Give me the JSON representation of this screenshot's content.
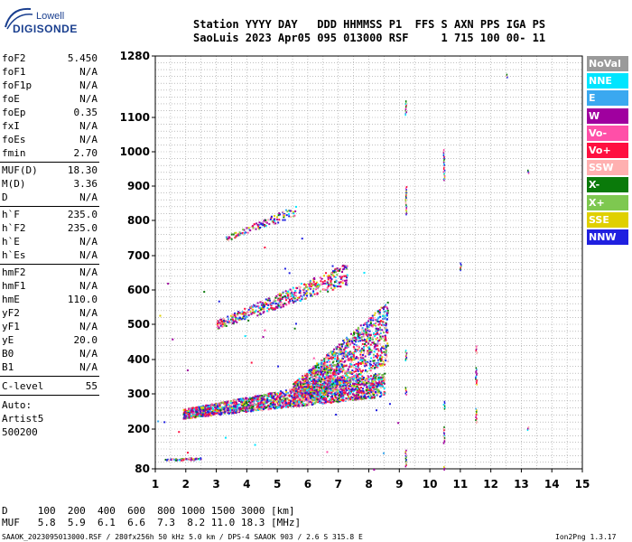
{
  "logo": {
    "line1": "Lowell",
    "line2": "DIGISONDE"
  },
  "header": {
    "row1": "Station YYYY DAY   DDD HHMMSS P1  FFS S AXN PPS IGA PS",
    "row2": "SaoLuis 2023 Apr05 095 013000 RSF     1 715 100 00- 11"
  },
  "params": {
    "group1": [
      {
        "label": "foF2",
        "value": "5.450"
      },
      {
        "label": "foF1",
        "value": "N/A"
      },
      {
        "label": "foF1p",
        "value": "N/A"
      },
      {
        "label": "foE",
        "value": "N/A"
      },
      {
        "label": "foEp",
        "value": "0.35"
      },
      {
        "label": "fxI",
        "value": "N/A"
      },
      {
        "label": "foEs",
        "value": "N/A"
      },
      {
        "label": "fmin",
        "value": "2.70"
      }
    ],
    "group2": [
      {
        "label": "MUF(D)",
        "value": "18.30"
      },
      {
        "label": "M(D)",
        "value": "3.36"
      },
      {
        "label": "D",
        "value": "N/A"
      }
    ],
    "group3": [
      {
        "label": "h`F",
        "value": "235.0"
      },
      {
        "label": "h`F2",
        "value": "235.0"
      },
      {
        "label": "h`E",
        "value": "N/A"
      },
      {
        "label": "h`Es",
        "value": "N/A"
      }
    ],
    "group4": [
      {
        "label": "hmF2",
        "value": "N/A"
      },
      {
        "label": "hmF1",
        "value": "N/A"
      },
      {
        "label": "hmE",
        "value": "110.0"
      },
      {
        "label": "yF2",
        "value": "N/A"
      },
      {
        "label": "yF1",
        "value": "N/A"
      },
      {
        "label": "yE",
        "value": "20.0"
      },
      {
        "label": "B0",
        "value": "N/A"
      },
      {
        "label": "B1",
        "value": "N/A"
      }
    ],
    "clevel": {
      "label": "C-level",
      "value": "55"
    },
    "auto": [
      "Auto:",
      "Artist5",
      "500200"
    ]
  },
  "legend": [
    {
      "label": "NoVal",
      "color": "#9a9a9a"
    },
    {
      "label": "NNE",
      "color": "#00e5ff"
    },
    {
      "label": "E",
      "color": "#3aa8f0"
    },
    {
      "label": "W",
      "color": "#a0009f"
    },
    {
      "label": "Vo-",
      "color": "#ff4fa8"
    },
    {
      "label": "Vo+",
      "color": "#ff1040"
    },
    {
      "label": "SSW",
      "color": "#ffb0b0"
    },
    {
      "label": "X-",
      "color": "#0a7a0a"
    },
    {
      "label": "X+",
      "color": "#7ec850"
    },
    {
      "label": "SSE",
      "color": "#e0d000"
    },
    {
      "label": "NNW",
      "color": "#2020e0"
    }
  ],
  "chart_data": {
    "type": "scatter",
    "title": "",
    "xlabel": "",
    "ylabel": "",
    "xlim": [
      1,
      15
    ],
    "ylim": [
      80,
      1280
    ],
    "x_ticks": [
      "1",
      "2",
      "3",
      "4",
      "5",
      "6",
      "7",
      "8",
      "9",
      "10",
      "11",
      "12",
      "13",
      "14",
      "15"
    ],
    "y_ticks": [
      "80",
      "200",
      "300",
      "400",
      "500",
      "600",
      "700",
      "800",
      "900",
      "1000",
      "1100",
      "1280"
    ],
    "grid": true,
    "traces": [
      {
        "name": "F-trace main",
        "x_range": [
          1.9,
          8.5
        ],
        "h_start": 245,
        "h_end": 330,
        "thickness": 45
      },
      {
        "name": "F-trace spread",
        "x_range": [
          5.5,
          8.6
        ],
        "h_start": 300,
        "h_end": 480,
        "thickness": 110
      },
      {
        "name": "2F multiple",
        "x_range": [
          3.0,
          7.3
        ],
        "h_start": 500,
        "h_end": 650,
        "thickness": 40
      },
      {
        "name": "3F multiple",
        "x_range": [
          3.3,
          5.6
        ],
        "h_start": 750,
        "h_end": 830,
        "thickness": 20
      },
      {
        "name": "E-region",
        "x_range": [
          1.3,
          2.5
        ],
        "h_start": 110,
        "h_end": 112,
        "thickness": 6
      }
    ]
  },
  "footer": {
    "d_row": "D     100  200  400  600  800 1000 1500 3000 [km]",
    "muf_row": "MUF   5.8  5.9  6.1  6.6  7.3  8.2 11.0 18.3 [MHz]",
    "file_row": "SAAOK_2023095013000.RSF / 280fx256h 50 kHz 5.0 km / DPS-4 SAAOK 903 / 2.6 S 315.8 E",
    "version": "Ion2Png 1.3.17"
  }
}
